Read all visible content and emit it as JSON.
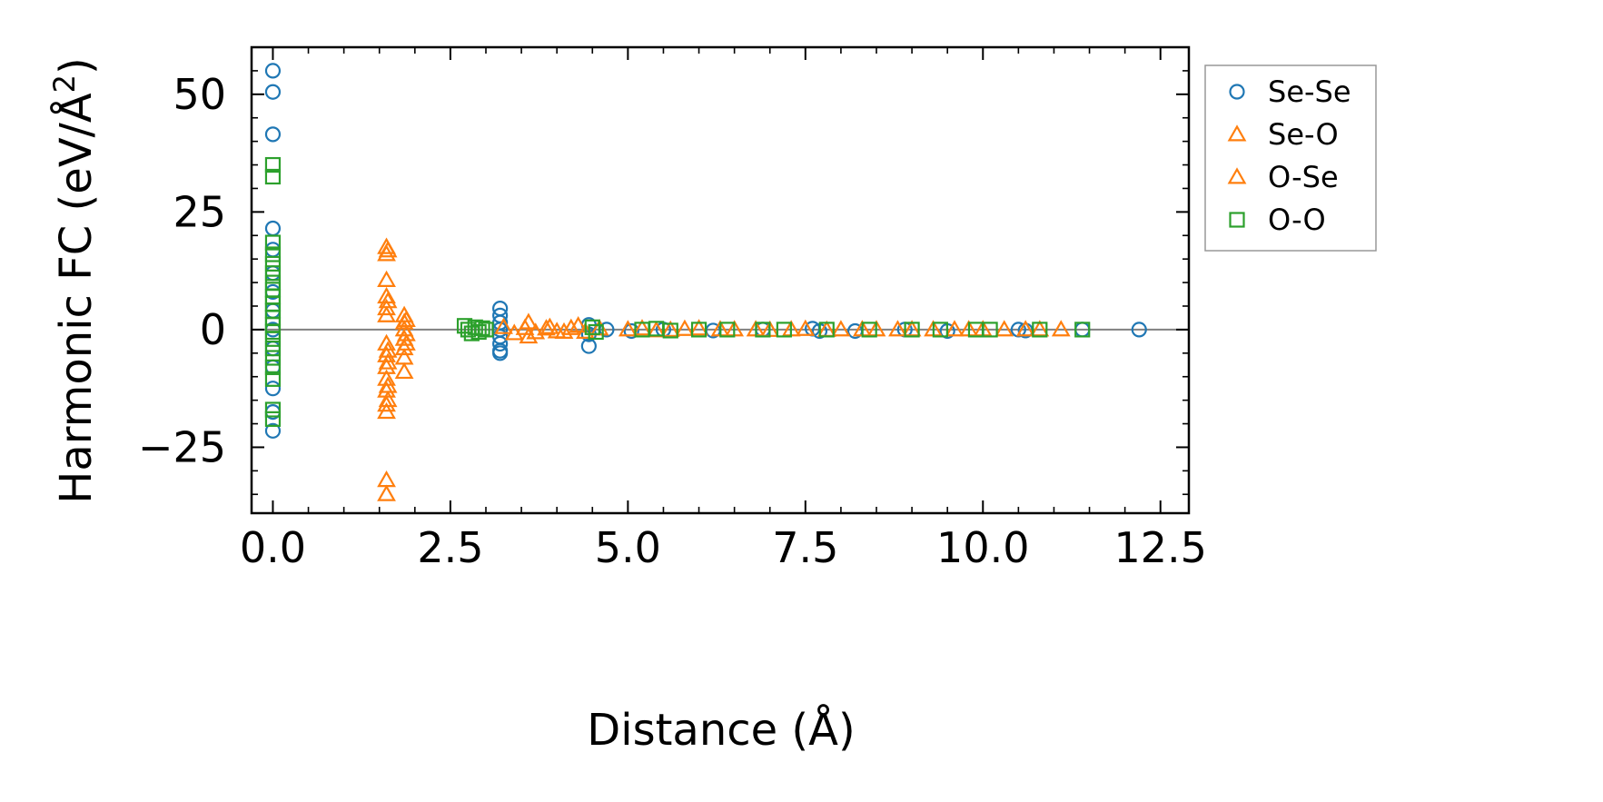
{
  "chart_data": {
    "type": "scatter",
    "xlabel": "Distance (Å)",
    "ylabel_main": "Harmonic FC (eV/Å",
    "ylabel_sup": "2",
    "ylabel_end": ")",
    "xlim": [
      -0.3,
      12.9
    ],
    "ylim": [
      -39,
      60
    ],
    "xticks": [
      0.0,
      2.5,
      5.0,
      7.5,
      10.0,
      12.5
    ],
    "xtick_labels": [
      "0.0",
      "2.5",
      "5.0",
      "7.5",
      "10.0",
      "12.5"
    ],
    "yticks": [
      -25,
      0,
      25,
      50
    ],
    "ytick_labels": [
      "−25",
      "0",
      "25",
      "50"
    ],
    "zero_line": true,
    "legend_position": "outside-top-right",
    "series": [
      {
        "name": "Se-Se",
        "marker": "circle",
        "color": "#1f77b4",
        "points": [
          [
            0.0,
            55
          ],
          [
            0.0,
            50.5
          ],
          [
            0.0,
            41.5
          ],
          [
            0.0,
            21.5
          ],
          [
            0.0,
            17
          ],
          [
            0.0,
            12
          ],
          [
            0.0,
            8
          ],
          [
            0.0,
            4
          ],
          [
            0.0,
            0
          ],
          [
            0.0,
            -4
          ],
          [
            0.0,
            -8
          ],
          [
            0.0,
            -12.5
          ],
          [
            0.0,
            -17.5
          ],
          [
            0.0,
            -21.5
          ],
          [
            3.2,
            4.5
          ],
          [
            3.2,
            3
          ],
          [
            3.2,
            1.5
          ],
          [
            3.2,
            0
          ],
          [
            3.2,
            -1.5
          ],
          [
            3.2,
            -3
          ],
          [
            3.2,
            -4.5
          ],
          [
            3.2,
            -5
          ],
          [
            4.45,
            1
          ],
          [
            4.45,
            -1
          ],
          [
            4.45,
            -3.5
          ],
          [
            4.7,
            0
          ],
          [
            5.05,
            -0.3
          ],
          [
            5.5,
            0
          ],
          [
            6.2,
            -0.2
          ],
          [
            6.9,
            0
          ],
          [
            7.6,
            0.2
          ],
          [
            7.7,
            -0.3
          ],
          [
            8.2,
            -0.3
          ],
          [
            8.9,
            0
          ],
          [
            9.5,
            -0.3
          ],
          [
            10.5,
            0
          ],
          [
            10.6,
            -0.2
          ],
          [
            11.4,
            0
          ],
          [
            12.2,
            0
          ]
        ]
      },
      {
        "name": "Se-O",
        "marker": "triangle",
        "color": "#ff7f0e",
        "points": [
          [
            1.6,
            17.5
          ],
          [
            1.6,
            16
          ],
          [
            1.6,
            10.5
          ],
          [
            1.6,
            7
          ],
          [
            1.6,
            4.5
          ],
          [
            1.6,
            3
          ],
          [
            1.6,
            -3
          ],
          [
            1.6,
            -5.5
          ],
          [
            1.6,
            -8
          ],
          [
            1.6,
            -10.5
          ],
          [
            1.6,
            -13
          ],
          [
            1.6,
            -16
          ],
          [
            1.6,
            -17.5
          ],
          [
            1.6,
            -32
          ],
          [
            1.6,
            -35
          ],
          [
            1.85,
            3
          ],
          [
            1.85,
            1.5
          ],
          [
            1.85,
            0
          ],
          [
            1.85,
            -2
          ],
          [
            1.85,
            -4
          ],
          [
            1.85,
            -6
          ],
          [
            1.85,
            -9
          ],
          [
            3.25,
            0.5
          ],
          [
            3.4,
            -0.8
          ],
          [
            3.55,
            0.3
          ],
          [
            3.7,
            -0.6
          ],
          [
            3.85,
            0.2
          ],
          [
            4.0,
            -0.4
          ],
          [
            4.2,
            0.3
          ],
          [
            4.4,
            -0.5
          ],
          [
            4.6,
            0.2
          ],
          [
            5.0,
            0
          ],
          [
            5.4,
            -0.2
          ],
          [
            5.8,
            0.1
          ],
          [
            6.3,
            0
          ],
          [
            6.8,
            0
          ],
          [
            7.3,
            0
          ],
          [
            7.8,
            -0.1
          ],
          [
            8.3,
            0
          ],
          [
            8.8,
            0
          ],
          [
            9.3,
            0
          ],
          [
            9.8,
            0
          ],
          [
            10.3,
            0
          ],
          [
            10.6,
            0
          ],
          [
            11.1,
            0
          ]
        ]
      },
      {
        "name": "O-Se",
        "marker": "triangle",
        "color": "#ff7f0e",
        "points": [
          [
            1.62,
            16.8
          ],
          [
            1.62,
            6
          ],
          [
            1.62,
            -4.5
          ],
          [
            1.62,
            -7
          ],
          [
            1.62,
            -12
          ],
          [
            1.62,
            -15
          ],
          [
            1.88,
            2
          ],
          [
            1.88,
            -1
          ],
          [
            1.88,
            -3
          ],
          [
            3.6,
            1.5
          ],
          [
            3.6,
            -1.5
          ],
          [
            3.9,
            0.5
          ],
          [
            4.1,
            -0.5
          ],
          [
            4.3,
            0.8
          ],
          [
            5.2,
            0.2
          ],
          [
            5.6,
            -0.1
          ],
          [
            6.0,
            0.2
          ],
          [
            6.5,
            0
          ],
          [
            7.0,
            -0.1
          ],
          [
            7.5,
            0.1
          ],
          [
            8.0,
            0
          ],
          [
            8.5,
            0
          ],
          [
            9.0,
            0
          ],
          [
            9.6,
            0
          ],
          [
            10.0,
            0
          ],
          [
            10.8,
            0
          ]
        ]
      },
      {
        "name": "O-O",
        "marker": "square",
        "color": "#2ca02c",
        "points": [
          [
            0.0,
            35
          ],
          [
            0.0,
            32.5
          ],
          [
            0.0,
            18.5
          ],
          [
            0.0,
            16
          ],
          [
            0.0,
            14
          ],
          [
            0.0,
            12
          ],
          [
            0.0,
            10
          ],
          [
            0.0,
            8.5
          ],
          [
            0.0,
            7
          ],
          [
            0.0,
            5.5
          ],
          [
            0.0,
            4
          ],
          [
            0.0,
            2.5
          ],
          [
            0.0,
            1
          ],
          [
            0.0,
            -0.5
          ],
          [
            0.0,
            -2
          ],
          [
            0.0,
            -4
          ],
          [
            0.0,
            -6
          ],
          [
            0.0,
            -8
          ],
          [
            0.0,
            -10.5
          ],
          [
            0.0,
            -17
          ],
          [
            0.0,
            -19
          ],
          [
            2.7,
            0.8
          ],
          [
            2.75,
            0
          ],
          [
            2.8,
            -0.8
          ],
          [
            2.85,
            0.5
          ],
          [
            2.9,
            -0.5
          ],
          [
            2.95,
            0.3
          ],
          [
            3.0,
            0
          ],
          [
            4.5,
            0.5
          ],
          [
            4.55,
            -0.5
          ],
          [
            5.2,
            0
          ],
          [
            5.4,
            0.2
          ],
          [
            5.6,
            -0.2
          ],
          [
            6.0,
            0
          ],
          [
            6.4,
            0
          ],
          [
            6.9,
            0
          ],
          [
            7.2,
            0
          ],
          [
            7.8,
            0
          ],
          [
            8.4,
            0
          ],
          [
            9.0,
            0
          ],
          [
            9.4,
            0
          ],
          [
            9.9,
            0
          ],
          [
            10.1,
            0
          ],
          [
            10.8,
            0
          ],
          [
            11.4,
            0
          ]
        ]
      }
    ]
  }
}
